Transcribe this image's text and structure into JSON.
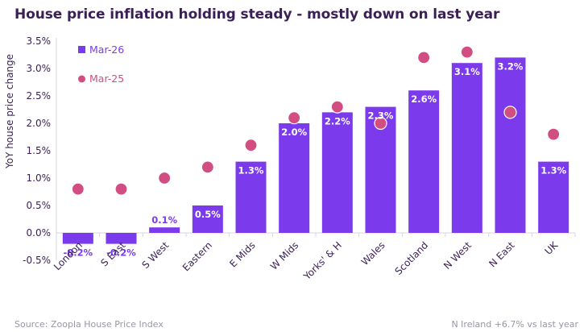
{
  "chart_data": {
    "type": "bar",
    "title": "House price inflation holding steady - mostly down on last year",
    "ylabel": "YoY house price change",
    "xlabel": "",
    "ylim": [
      -0.5,
      3.5
    ],
    "yticks": [
      "-0.5%",
      "0.0%",
      "0.5%",
      "1.0%",
      "1.5%",
      "2.0%",
      "2.5%",
      "3.0%",
      "3.5%"
    ],
    "ytick_values": [
      -0.5,
      0.0,
      0.5,
      1.0,
      1.5,
      2.0,
      2.5,
      3.0,
      3.5
    ],
    "categories": [
      "London",
      "S East",
      "S West",
      "Eastern",
      "E Mids",
      "W Mids",
      "Yorks' & H",
      "Wales",
      "Scotland",
      "N West",
      "N East",
      "UK"
    ],
    "series": [
      {
        "name": "Mar-26",
        "type": "bar",
        "color": "#7c3aed",
        "values": [
          -0.2,
          -0.2,
          0.1,
          0.5,
          1.3,
          2.0,
          2.2,
          2.3,
          2.6,
          3.1,
          3.2,
          1.3
        ],
        "labels": [
          "-0.2%",
          "-0.2%",
          "0.1%",
          "0.5%",
          "1.3%",
          "2.0%",
          "2.2%",
          "2.3%",
          "2.6%",
          "3.1%",
          "3.2%",
          "1.3%"
        ]
      },
      {
        "name": "Mar-25",
        "type": "scatter",
        "color": "#d14d82",
        "values": [
          0.8,
          0.8,
          1.0,
          1.2,
          1.6,
          2.1,
          2.3,
          2.0,
          3.2,
          3.3,
          2.2,
          1.8
        ]
      }
    ],
    "legend": "top-left",
    "grid": false
  },
  "footer": {
    "source": "Source: Zoopla House Price Index",
    "note": "N Ireland +6.7% vs last year"
  }
}
